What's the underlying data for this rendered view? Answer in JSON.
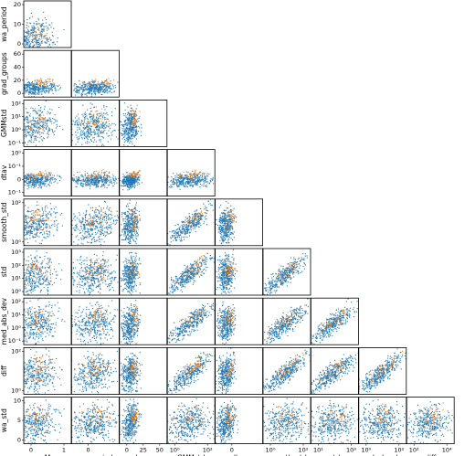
{
  "chart_data": {
    "type": "scatter",
    "title": "",
    "layout": "lower-triangular pair-plot grid (corner plot)",
    "variables": [
      "M",
      "wa_period",
      "grad_groups",
      "GMMstd",
      "dtav",
      "smooth_std",
      "std",
      "med_abs_dev",
      "diff",
      "wa_std"
    ],
    "column_labels": [
      "M",
      "wa_period",
      "grad_groups",
      "GMMstd",
      "dtav",
      "smooth_std",
      "std",
      "med_abs_dev",
      "diff"
    ],
    "row_labels": [
      "wa_period",
      "grad_groups",
      "GMMstd",
      "dtav",
      "smooth_std",
      "std",
      "med_abs_dev",
      "diff",
      "wa_std"
    ],
    "colors": {
      "background_class": "#1f77b4",
      "highlight_class": "#ff7f0e",
      "frame": "#000000"
    },
    "series": [
      {
        "color": "#1f77b4",
        "role": "background",
        "relative_density": "high"
      },
      {
        "color": "#ff7f0e",
        "role": "highlighted",
        "relative_density": "low"
      }
    ],
    "row_tick_labels": {
      "wa_period": [
        "0",
        "10",
        "20"
      ],
      "grad_groups": [
        "0",
        "20",
        "40",
        "60"
      ],
      "GMMstd": [
        "10⁻¹",
        "10⁰",
        "10¹",
        "10²"
      ],
      "dtav": [
        "10⁻¹",
        "0",
        "10⁻¹",
        "10⁰"
      ],
      "smooth_std": [
        "10⁰",
        "10²"
      ],
      "std": [
        "10⁰",
        "10¹",
        "10²",
        "10³"
      ],
      "med_abs_dev": [
        "10⁻¹",
        "10⁰",
        "10¹",
        "10²"
      ],
      "diff": [
        "10⁰",
        "10²"
      ],
      "wa_std": [
        "0",
        "5",
        "10"
      ]
    },
    "col_tick_labels": {
      "M": [
        "0",
        "1"
      ],
      "wa_period": [
        "0"
      ],
      "grad_groups": [
        "0",
        "25",
        "50"
      ],
      "GMMstd": [
        "10⁰",
        "10²"
      ],
      "dtav": [
        "0"
      ],
      "smooth_std": [
        "10⁰",
        "10²"
      ],
      "std": [
        "10¹",
        "10³"
      ],
      "med_abs_dev": [
        "10⁰",
        "10²"
      ],
      "diff": [
        "10²",
        "10⁴"
      ]
    },
    "grid": false,
    "legend": "none"
  }
}
